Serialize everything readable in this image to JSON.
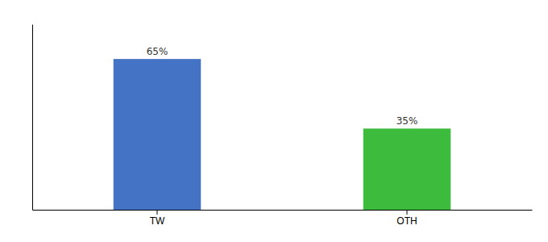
{
  "chart_data": {
    "type": "bar",
    "categories": [
      "TW",
      "OTH"
    ],
    "values": [
      65,
      35
    ],
    "value_labels": [
      "65%",
      "35%"
    ],
    "colors": [
      "#4472c4",
      "#3dbb3d"
    ],
    "ylim": [
      0,
      80
    ],
    "data_labels": true,
    "tick_labels": "x",
    "grid": false
  }
}
